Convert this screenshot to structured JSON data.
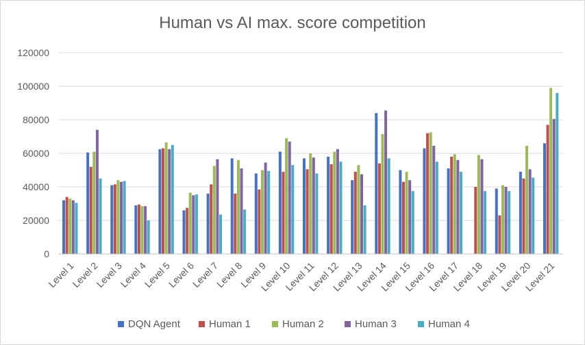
{
  "chart_data": {
    "type": "bar",
    "title": "Human vs AI max. score competition",
    "xlabel": "",
    "ylabel": "",
    "ylim": [
      0,
      120000
    ],
    "yticks": [
      "0",
      "20000",
      "40000",
      "60000",
      "80000",
      "100000",
      "120000"
    ],
    "grid": true,
    "legend_position": "bottom",
    "categories": [
      "Level 1",
      "Level 2",
      "Level 3",
      "Level 4",
      "Level 5",
      "Level 6",
      "Level 7",
      "Level 8",
      "Level 9",
      "Level 10",
      "Level 11",
      "Level 12",
      "Level 13",
      "Level 14",
      "Level 15",
      "Level 16",
      "Level 17",
      "Level 18",
      "Level 19",
      "Level 20",
      "Level 21"
    ],
    "series": [
      {
        "name": "DQN Agent",
        "color": "#4472c4",
        "values": [
          32000,
          60500,
          41000,
          29000,
          62500,
          26000,
          36000,
          57000,
          48000,
          61000,
          57000,
          58000,
          44000,
          84000,
          50000,
          63000,
          51000,
          0,
          39000,
          49000,
          66000
        ]
      },
      {
        "name": "Human 1",
        "color": "#c0504d",
        "values": [
          34000,
          52000,
          41500,
          29500,
          63000,
          27500,
          41500,
          36000,
          38500,
          49000,
          50500,
          53500,
          49000,
          54000,
          43000,
          72000,
          58000,
          40000,
          23000,
          45000,
          77000
        ]
      },
      {
        "name": "Human 2",
        "color": "#9bbb59",
        "values": [
          33000,
          61000,
          44000,
          28500,
          66500,
          36500,
          52500,
          56000,
          50000,
          69000,
          60000,
          61000,
          53000,
          71500,
          49000,
          72500,
          59500,
          59000,
          41000,
          64500,
          99000
        ]
      },
      {
        "name": "Human 3",
        "color": "#8064a2",
        "values": [
          32000,
          74000,
          43000,
          28500,
          62500,
          35000,
          56500,
          51000,
          54500,
          67000,
          57500,
          62500,
          47500,
          85500,
          44000,
          64500,
          56000,
          56500,
          40000,
          50500,
          80500
        ]
      },
      {
        "name": "Human 4",
        "color": "#4bacc6",
        "values": [
          30500,
          45000,
          43500,
          20000,
          65000,
          35500,
          23500,
          26500,
          49500,
          53000,
          48000,
          55000,
          29000,
          57000,
          37500,
          55000,
          49000,
          37500,
          37500,
          45500,
          96000
        ]
      }
    ]
  }
}
